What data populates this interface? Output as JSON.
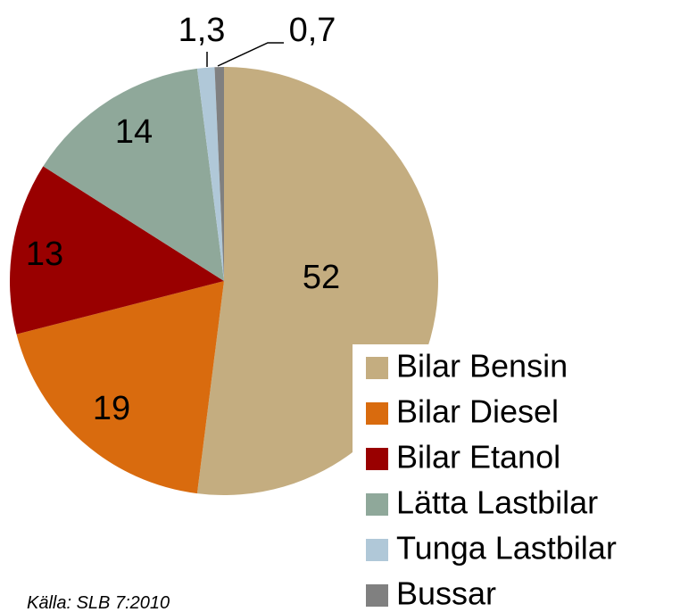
{
  "chart_data": {
    "type": "pie",
    "categories": [
      "Bilar Bensin",
      "Bilar Diesel",
      "Bilar Etanol",
      "Lätta Lastbilar",
      "Tunga Lastbilar",
      "Bussar"
    ],
    "values": [
      52,
      19,
      13,
      14,
      1.3,
      0.7
    ],
    "value_labels": [
      "52",
      "19",
      "13",
      "14",
      "1,3",
      "0,7"
    ],
    "colors": [
      "#c4ad80",
      "#d96b0e",
      "#990000",
      "#8fa89a",
      "#b0c8d8",
      "#808080"
    ],
    "source": "Källa: SLB 7:2010"
  }
}
